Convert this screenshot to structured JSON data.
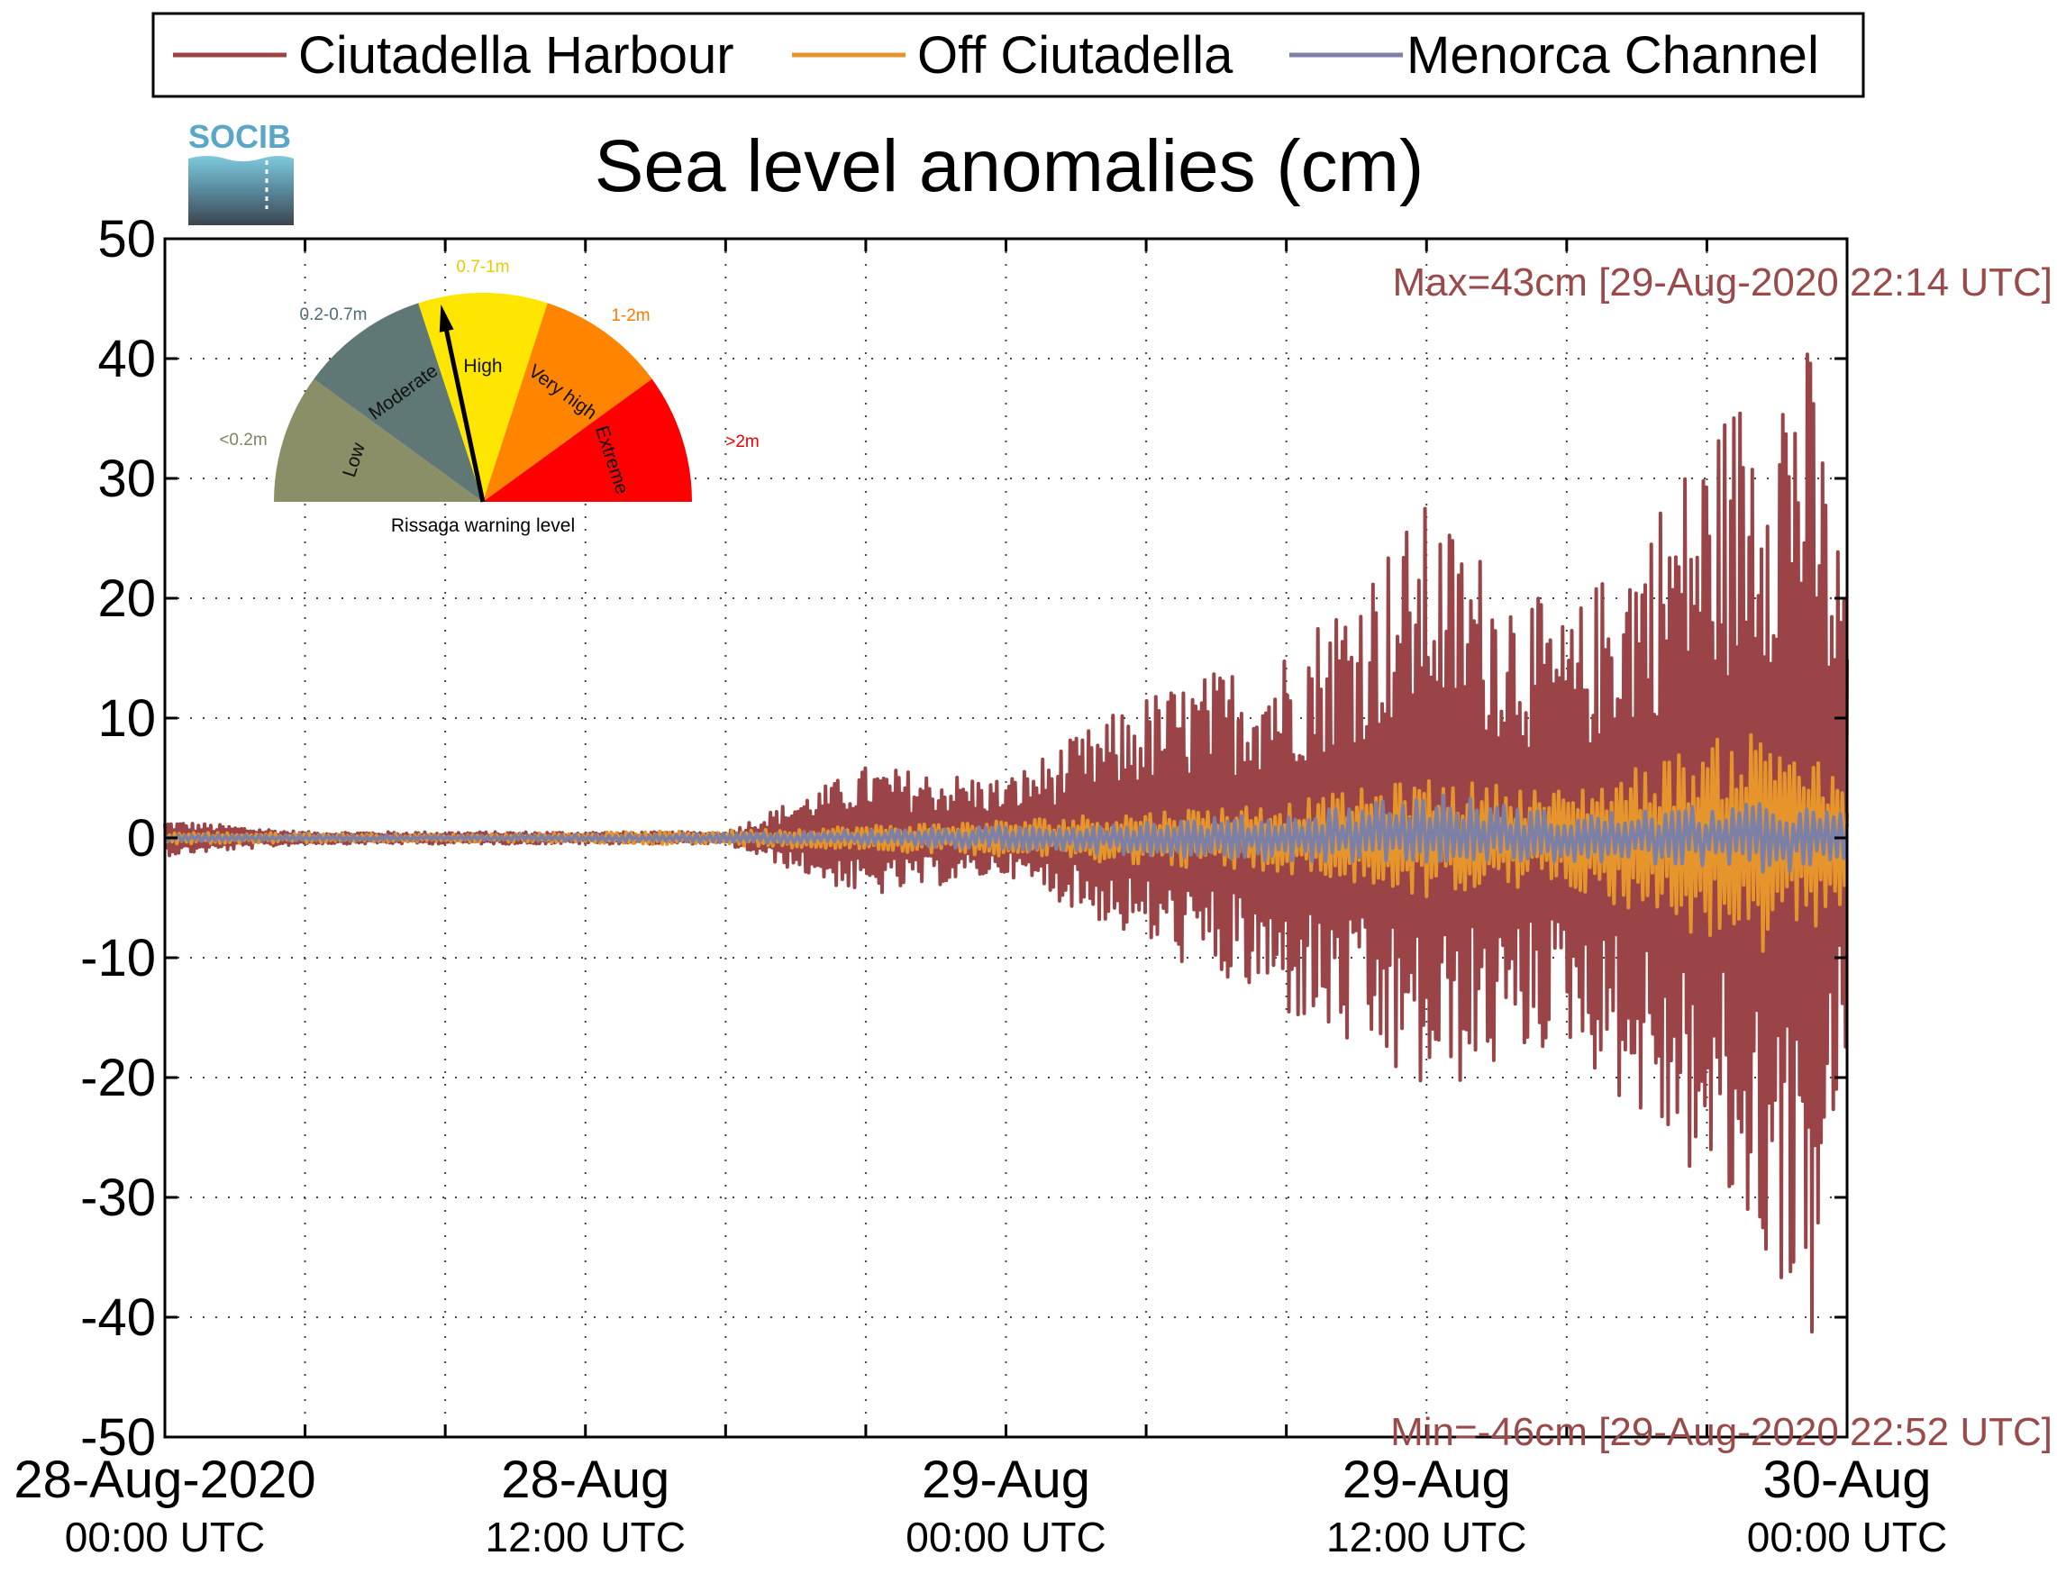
{
  "chart_data": {
    "type": "line",
    "title": "Sea level anomalies (cm)",
    "ylim": [
      -50,
      50
    ],
    "yticks": [
      50,
      40,
      30,
      20,
      10,
      0,
      -10,
      -20,
      -30,
      -40,
      -50
    ],
    "xlim": [
      "2020-08-28T00:00",
      "2020-08-30T00:00"
    ],
    "xtick_labels": [
      {
        "date": "28-Aug-2020",
        "time": "00:00 UTC"
      },
      {
        "date": "28-Aug",
        "time": "12:00 UTC"
      },
      {
        "date": "29-Aug",
        "time": "00:00 UTC"
      },
      {
        "date": "29-Aug",
        "time": "12:00 UTC"
      },
      {
        "date": "30-Aug",
        "time": "00:00 UTC"
      }
    ],
    "grid": true,
    "legend_position": "top",
    "series": [
      {
        "name": "Ciutadella Harbour",
        "color": "#9a4447",
        "x": [
          "2020-08-28T00:00",
          "2020-08-28T04:00",
          "2020-08-28T08:00",
          "2020-08-28T12:00",
          "2020-08-28T16:00",
          "2020-08-28T20:00",
          "2020-08-29T00:00",
          "2020-08-29T04:00",
          "2020-08-29T08:00",
          "2020-08-29T12:00",
          "2020-08-29T16:00",
          "2020-08-29T20:00",
          "2020-08-29T22:14",
          "2020-08-29T22:52",
          "2020-08-30T00:00"
        ],
        "envelope_max": [
          1.5,
          0.5,
          0.5,
          0.5,
          0.5,
          6,
          5,
          12,
          16,
          28,
          18,
          34,
          43,
          42,
          21
        ],
        "envelope_min": [
          -1.5,
          -0.5,
          -0.5,
          -0.5,
          -0.5,
          -5,
          -3,
          -9,
          -15,
          -22,
          -17,
          -30,
          -38,
          -46,
          -18
        ]
      },
      {
        "name": "Off Ciutadella",
        "color": "#e5952c",
        "x": [
          "2020-08-28T00:00",
          "2020-08-28T08:00",
          "2020-08-28T16:00",
          "2020-08-29T00:00",
          "2020-08-29T08:00",
          "2020-08-29T12:00",
          "2020-08-29T16:00",
          "2020-08-29T22:00",
          "2020-08-30T00:00"
        ],
        "envelope_max": [
          0.5,
          0.3,
          0.6,
          1.5,
          3,
          5,
          4,
          10,
          4
        ],
        "envelope_min": [
          -0.5,
          -0.3,
          -0.6,
          -1.5,
          -3,
          -5,
          -4,
          -11,
          -5
        ]
      },
      {
        "name": "Menorca Channel",
        "color": "#7d80a6",
        "x": [
          "2020-08-28T00:00",
          "2020-08-28T08:00",
          "2020-08-28T16:00",
          "2020-08-29T00:00",
          "2020-08-29T08:00",
          "2020-08-29T12:00",
          "2020-08-29T16:00",
          "2020-08-29T22:00",
          "2020-08-30T00:00"
        ],
        "envelope_max": [
          0.3,
          0.2,
          0.4,
          1,
          2,
          4,
          2,
          3,
          2
        ],
        "envelope_min": [
          -0.3,
          -0.2,
          -0.4,
          -1,
          -2,
          -2,
          -2,
          -3,
          -2
        ]
      }
    ],
    "annotations": {
      "max": "Max=43cm [29-Aug-2020 22:14 UTC]",
      "min": "Min=-46cm [29-Aug-2020 22:52 UTC]"
    }
  },
  "logo": {
    "text": "SOCIB"
  },
  "gauge": {
    "title": "Rissaga warning level",
    "needle_level": "High",
    "levels": [
      {
        "name": "Low",
        "range": "<0.2m",
        "color": "#8a8f68",
        "label_color": "#7f8460"
      },
      {
        "name": "Moderate",
        "range": "0.2-0.7m",
        "color": "#5f7775",
        "label_color": "#4d6b78"
      },
      {
        "name": "High",
        "range": "0.7-1m",
        "color": "#ffe600",
        "label_color": "#e6cc00"
      },
      {
        "name": "Very high",
        "range": "1-2m",
        "color": "#ff8400",
        "label_color": "#ff7a00"
      },
      {
        "name": "Extreme",
        "range": ">2m",
        "color": "#ff0000",
        "label_color": "#ee0000"
      }
    ]
  }
}
